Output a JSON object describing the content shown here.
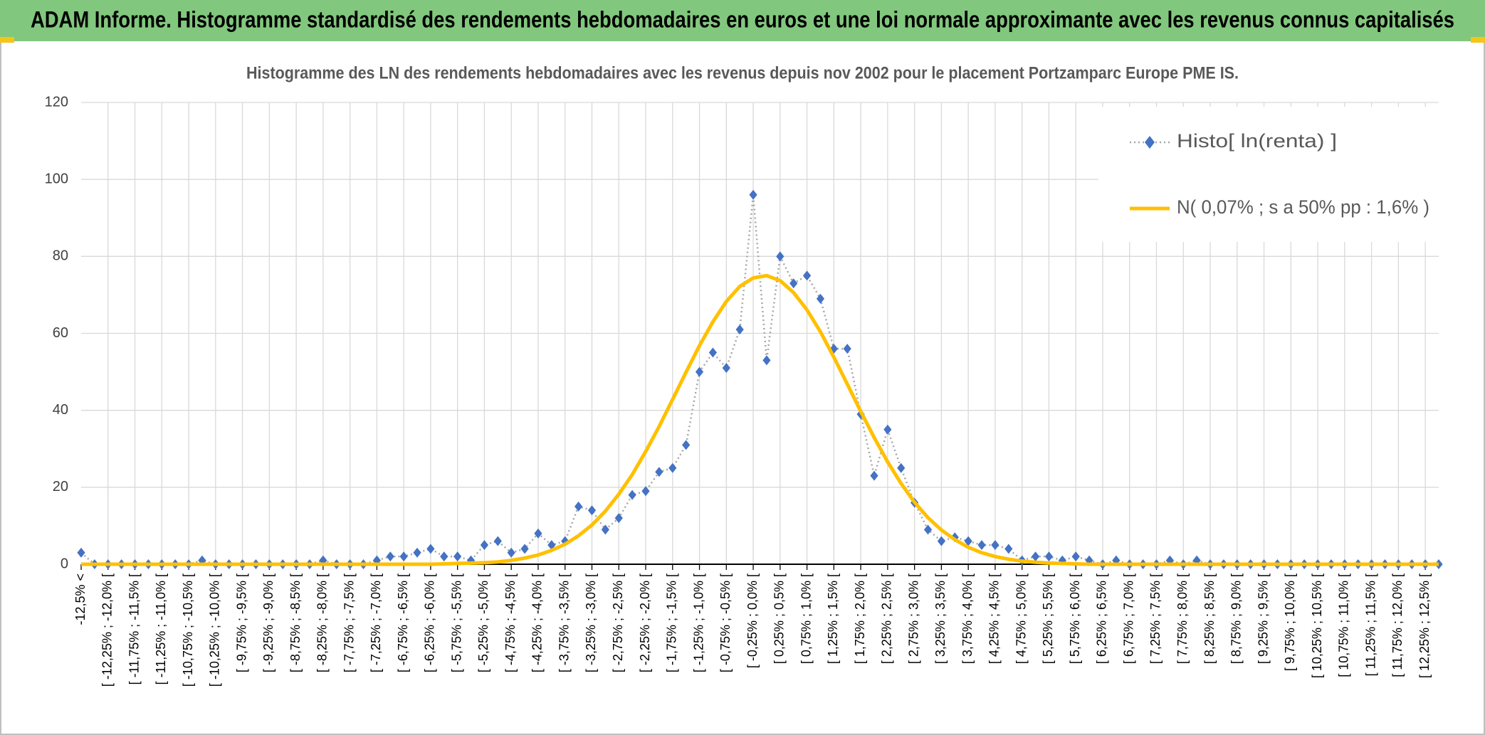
{
  "header": {
    "title": "ADAM Informe. Histogramme standardisé des rendements hebdomadaires en euros et une loi normale approximante avec les revenus connus capitalisés"
  },
  "chart_data": {
    "type": "line",
    "title": "Histogramme des LN des rendements hebdomadaires avec les revenus depuis nov 2002 pour le placement Portzamparc Europe PME IS.",
    "categories": [
      "-12,5% <",
      null,
      "[ -12,25% ; -12,0% [",
      null,
      "[ -11,75% ; -11,5% [",
      null,
      "[ -11,25% ; -11,0% [",
      null,
      "[ -10,75% ; -10,5% [",
      null,
      "[ -10,25% ; -10,0% [",
      null,
      "[ -9,75% ; -9,5% [",
      null,
      "[ -9,25% ; -9,0% [",
      null,
      "[ -8,75% ; -8,5% [",
      null,
      "[ -8,25% ; -8,0% [",
      null,
      "[ -7,75% ; -7,5% [",
      null,
      "[ -7,25% ; -7,0% [",
      null,
      "[ -6,75% ; -6,5% [",
      null,
      "[ -6,25% ; -6,0% [",
      null,
      "[ -5,75% ; -5,5% [",
      null,
      "[ -5,25% ; -5,0% [",
      null,
      "[ -4,75% ; -4,5% [",
      null,
      "[ -4,25% ; -4,0% [",
      null,
      "[ -3,75% ; -3,5% [",
      null,
      "[ -3,25% ; -3,0% [",
      null,
      "[ -2,75% ; -2,5% [",
      null,
      "[ -2,25% ; -2,0% [",
      null,
      "[ -1,75% ; -1,5% [",
      null,
      "[ -1,25% ; -1,0% [",
      null,
      "[ -0,75% ; -0,5% [",
      null,
      "[ -0,25% ; 0,0% [",
      null,
      "[ 0,25% ; 0,5% [",
      null,
      "[ 0,75% ; 1,0% [",
      null,
      "[ 1,25% ; 1,5% [",
      null,
      "[ 1,75% ; 2,0% [",
      null,
      "[ 2,25% ; 2,5% [",
      null,
      "[ 2,75% ; 3,0% [",
      null,
      "[ 3,25% ; 3,5% [",
      null,
      "[ 3,75% ; 4,0% [",
      null,
      "[ 4,25% ; 4,5% [",
      null,
      "[ 4,75% ; 5,0% [",
      null,
      "[ 5,25% ; 5,5% [",
      null,
      "[ 5,75% ; 6,0% [",
      null,
      "[ 6,25% ; 6,5% [",
      null,
      "[ 6,75% ; 7,0% [",
      null,
      "[ 7,25% ; 7,5% [",
      null,
      "[ 7,75% ; 8,0% [",
      null,
      "[ 8,25% ; 8,5% [",
      null,
      "[ 8,75% ; 9,0% [",
      null,
      "[ 9,25% ; 9,5% [",
      null,
      "[ 9,75% ; 10,0% [",
      null,
      "[ 10,25% ; 10,5% [",
      null,
      "[ 10,75% ; 11,0% [",
      null,
      "[ 11,25% ; 11,5% [",
      null,
      "[ 11,75% ; 12,0% [",
      null,
      "[ 12,25% ; 12,5% [",
      null
    ],
    "series": [
      {
        "name": "Histo[ ln(renta) ]",
        "color": "#4472c4",
        "line_color": "#a6a6a6",
        "linestyle": "dotted",
        "marker": "diamond",
        "values": [
          3,
          0,
          0,
          0,
          0,
          0,
          0,
          0,
          0,
          1,
          0,
          0,
          0,
          0,
          0,
          0,
          0,
          0,
          1,
          0,
          0,
          0,
          1,
          2,
          2,
          3,
          4,
          2,
          2,
          1,
          5,
          6,
          3,
          4,
          8,
          5,
          6,
          15,
          14,
          9,
          12,
          18,
          19,
          24,
          25,
          31,
          50,
          55,
          51,
          61,
          96,
          53,
          80,
          73,
          75,
          69,
          56,
          56,
          39,
          23,
          35,
          25,
          16,
          9,
          6,
          7,
          6,
          5,
          5,
          4,
          1,
          2,
          2,
          1,
          2,
          1,
          0,
          1,
          0,
          0,
          0,
          1,
          0,
          1,
          0,
          0,
          0,
          0,
          0,
          0,
          0,
          0,
          0,
          0,
          0,
          0,
          0,
          0,
          0,
          0,
          0,
          0
        ]
      },
      {
        "name": "N( 0,07% ; s a 50% pp : 1,6% )",
        "color": "#ffc000",
        "linestyle": "solid",
        "marker": "none",
        "values": [
          0,
          0,
          0,
          0,
          0,
          0,
          0,
          0,
          0,
          0,
          0,
          0,
          0,
          0,
          0,
          0,
          0,
          0,
          0,
          0,
          0,
          0,
          0,
          0,
          0,
          0,
          0,
          0.1,
          0.2,
          0.3,
          0.4,
          0.6,
          1.0,
          1.6,
          2.4,
          3.6,
          5.2,
          7.4,
          10.2,
          13.8,
          18.2,
          23.3,
          29.3,
          35.8,
          42.8,
          49.9,
          56.8,
          63.0,
          68.3,
          72.2,
          74.4,
          75.0,
          73.7,
          70.6,
          66.1,
          60.4,
          53.8,
          46.8,
          39.7,
          32.9,
          26.6,
          21.0,
          16.1,
          12.1,
          8.9,
          6.4,
          4.4,
          3.0,
          2.0,
          1.3,
          0.8,
          0.5,
          0.3,
          0.2,
          0.1,
          0,
          0,
          0,
          0,
          0,
          0,
          0,
          0,
          0,
          0,
          0,
          0,
          0,
          0,
          0,
          0,
          0,
          0,
          0,
          0,
          0,
          0,
          0,
          0,
          0,
          0,
          0
        ]
      }
    ],
    "ylim": [
      0,
      120
    ],
    "yticks": [
      0,
      20,
      40,
      60,
      80,
      100,
      120
    ],
    "grid": true,
    "legend": "upper right"
  }
}
